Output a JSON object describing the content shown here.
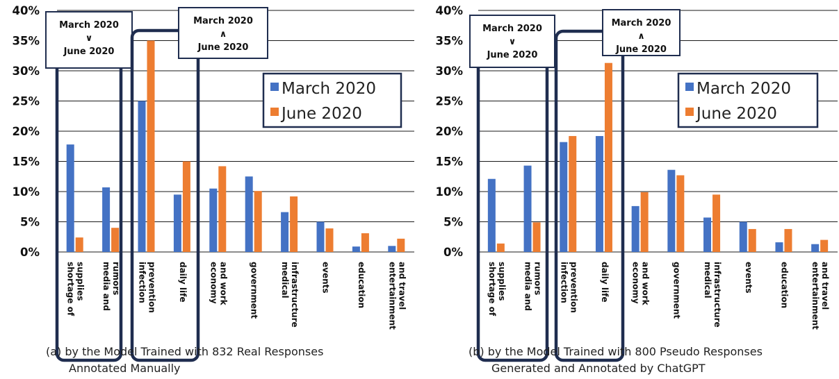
{
  "colors": {
    "march": "#4472C4",
    "june": "#ED7D31",
    "frame": "#1F2D4F",
    "grid": "#1A1A1A"
  },
  "chart_data": [
    {
      "type": "bar",
      "caption": [
        "(a) by the Model Trained with 832 Real Responses",
        "Annotated Manually"
      ],
      "categories": [
        [
          "shortage of",
          "supplies"
        ],
        [
          "media and",
          "rumors"
        ],
        [
          "infection",
          "prevention"
        ],
        [
          "daily life"
        ],
        [
          "economy",
          "and work"
        ],
        [
          "government"
        ],
        [
          "medical",
          "infrastructure"
        ],
        [
          "events"
        ],
        [
          "education"
        ],
        [
          "entertainment",
          "and travel"
        ]
      ],
      "series": [
        {
          "name": "March 2020",
          "values": [
            17.8,
            10.7,
            25.0,
            9.5,
            10.5,
            12.5,
            6.6,
            5.0,
            0.9,
            1.0
          ]
        },
        {
          "name": "June 2020",
          "values": [
            2.4,
            4.0,
            35.0,
            15.0,
            14.2,
            10.1,
            9.2,
            3.9,
            3.1,
            2.2
          ]
        }
      ],
      "ylim": [
        0,
        40
      ],
      "yticks": [
        "0%",
        "5%",
        "10%",
        "15%",
        "20%",
        "25%",
        "30%",
        "35%",
        "40%"
      ],
      "grid": true,
      "legend": "upper-right",
      "annotations": [
        {
          "lines": [
            "March 2020",
            "∨",
            "June 2020"
          ],
          "highlight_group": [
            0,
            1
          ]
        },
        {
          "lines": [
            "March 2020",
            "∧",
            "June 2020"
          ],
          "highlight_group": [
            2,
            3
          ]
        }
      ]
    },
    {
      "type": "bar",
      "caption": [
        "(b) by the Model Trained with 800 Pseudo Responses",
        "Generated and Annotated by ChatGPT"
      ],
      "categories": [
        [
          "shortage of",
          "supplies"
        ],
        [
          "media and",
          "rumors"
        ],
        [
          "infection",
          "prevention"
        ],
        [
          "daily life"
        ],
        [
          "economy",
          "and work"
        ],
        [
          "government"
        ],
        [
          "medical",
          "infrastructure"
        ],
        [
          "events"
        ],
        [
          "education"
        ],
        [
          "entertainment",
          "and travel"
        ]
      ],
      "series": [
        {
          "name": "March 2020",
          "values": [
            12.1,
            14.3,
            18.2,
            19.2,
            7.6,
            13.6,
            5.7,
            5.0,
            1.6,
            1.3
          ]
        },
        {
          "name": "June 2020",
          "values": [
            1.4,
            4.9,
            19.2,
            31.3,
            9.9,
            12.7,
            9.5,
            3.8,
            3.8,
            2.0
          ]
        }
      ],
      "ylim": [
        0,
        40
      ],
      "yticks": [
        "0%",
        "5%",
        "10%",
        "15%",
        "20%",
        "25%",
        "30%",
        "35%",
        "40%"
      ],
      "grid": true,
      "legend": "upper-right",
      "annotations": [
        {
          "lines": [
            "March 2020",
            "∨",
            "June 2020"
          ],
          "highlight_group": [
            0,
            1
          ]
        },
        {
          "lines": [
            "March 2020",
            "∧",
            "June 2020"
          ],
          "highlight_group": [
            2,
            3
          ]
        }
      ]
    }
  ]
}
